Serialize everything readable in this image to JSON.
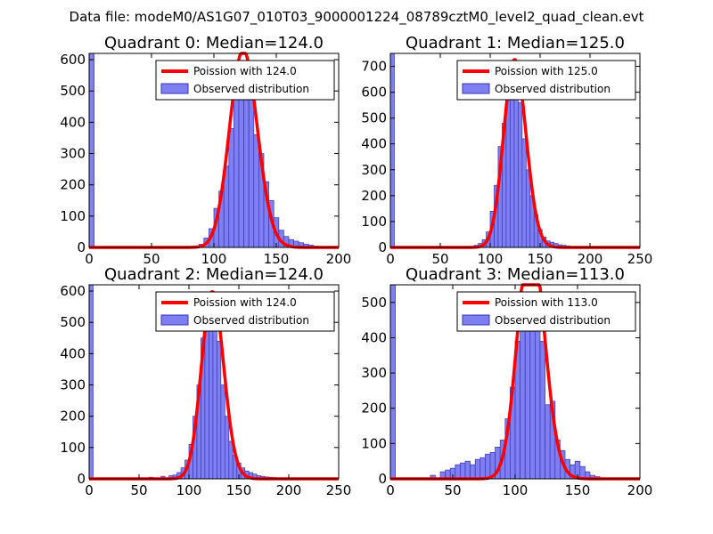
{
  "figure": {
    "suptitle": "Data file: modeM0/AS1G07_010T03_9000001224_08789cztM0_level2_quad_clean.evt"
  },
  "colors": {
    "hist_fill": "#7f7ff2",
    "hist_edge": "#3636b8",
    "poisson_line": "#ff0000",
    "axes": "#000000"
  },
  "chart_data": [
    {
      "type": "bar",
      "title": "Quadrant 0: Median=124.0",
      "median": 124.0,
      "xlim": [
        0,
        200
      ],
      "ylim": [
        0,
        620
      ],
      "xticks": [
        0,
        50,
        100,
        150,
        200
      ],
      "yticks": [
        0,
        100,
        200,
        300,
        400,
        500,
        600
      ],
      "bin_width": 4,
      "legend": {
        "position": "top-right",
        "line_label": "Poission with 124.0",
        "bar_label": "Observed distribution"
      },
      "histogram": {
        "bin_starts": [
          0,
          72,
          80,
          84,
          88,
          92,
          96,
          100,
          104,
          108,
          112,
          116,
          120,
          124,
          128,
          132,
          136,
          140,
          144,
          148,
          152,
          156,
          160,
          164,
          168,
          172,
          176,
          180,
          184,
          188
        ],
        "counts": [
          620,
          3,
          2,
          5,
          10,
          30,
          60,
          125,
          180,
          260,
          380,
          500,
          560,
          580,
          510,
          360,
          300,
          210,
          150,
          95,
          55,
          35,
          25,
          20,
          15,
          10,
          7,
          4,
          3,
          2
        ]
      }
    },
    {
      "type": "bar",
      "title": "Quadrant 1: Median=125.0",
      "median": 125.0,
      "xlim": [
        0,
        250
      ],
      "ylim": [
        0,
        750
      ],
      "xticks": [
        0,
        50,
        100,
        150,
        200,
        250
      ],
      "yticks": [
        0,
        100,
        200,
        300,
        400,
        500,
        600,
        700
      ],
      "bin_width": 4,
      "legend": {
        "position": "top-right",
        "line_label": "Poission with 125.0",
        "bar_label": "Observed distribution"
      },
      "histogram": {
        "bin_starts": [
          0,
          64,
          72,
          80,
          84,
          88,
          92,
          96,
          100,
          104,
          108,
          112,
          116,
          120,
          124,
          128,
          132,
          136,
          140,
          144,
          148,
          152,
          156,
          160,
          164,
          168,
          172,
          176,
          180,
          184,
          188,
          196
        ],
        "counts": [
          750,
          2,
          3,
          4,
          8,
          15,
          30,
          60,
          140,
          240,
          390,
          480,
          600,
          720,
          690,
          560,
          420,
          300,
          200,
          125,
          70,
          40,
          25,
          20,
          15,
          10,
          8,
          6,
          4,
          3,
          2,
          2
        ]
      }
    },
    {
      "type": "bar",
      "title": "Quadrant 2: Median=124.0",
      "median": 124.0,
      "xlim": [
        0,
        250
      ],
      "ylim": [
        0,
        620
      ],
      "xticks": [
        0,
        50,
        100,
        150,
        200,
        250
      ],
      "yticks": [
        0,
        100,
        200,
        300,
        400,
        500,
        600
      ],
      "bin_width": 4,
      "legend": {
        "position": "top-right",
        "line_label": "Poission with 124.0",
        "bar_label": "Observed distribution"
      },
      "histogram": {
        "bin_starts": [
          0,
          60,
          72,
          80,
          84,
          88,
          92,
          96,
          100,
          104,
          108,
          112,
          116,
          120,
          124,
          128,
          132,
          136,
          140,
          144,
          148,
          152,
          156,
          160,
          164,
          168,
          172,
          176,
          180,
          184,
          188,
          192
        ],
        "counts": [
          620,
          5,
          8,
          10,
          12,
          20,
          35,
          60,
          110,
          200,
          300,
          450,
          560,
          590,
          580,
          440,
          300,
          200,
          120,
          75,
          50,
          35,
          25,
          20,
          15,
          10,
          8,
          6,
          5,
          4,
          3,
          2
        ]
      }
    },
    {
      "type": "bar",
      "title": "Quadrant 3: Median=113.0",
      "median": 113.0,
      "xlim": [
        0,
        200
      ],
      "ylim": [
        0,
        550
      ],
      "xticks": [
        0,
        50,
        100,
        150,
        200
      ],
      "yticks": [
        0,
        100,
        200,
        300,
        400,
        500
      ],
      "bin_width": 4,
      "legend": {
        "position": "top-right",
        "line_label": "Poission with 113.0",
        "bar_label": "Observed distribution"
      },
      "histogram": {
        "bin_starts": [
          0,
          32,
          40,
          44,
          48,
          52,
          56,
          60,
          64,
          68,
          72,
          76,
          80,
          84,
          88,
          92,
          96,
          100,
          104,
          108,
          112,
          116,
          120,
          124,
          128,
          132,
          136,
          140,
          144,
          148,
          152,
          156,
          160,
          164,
          168
        ],
        "counts": [
          560,
          10,
          20,
          25,
          30,
          40,
          45,
          50,
          40,
          55,
          60,
          70,
          75,
          90,
          110,
          170,
          260,
          390,
          440,
          510,
          520,
          470,
          390,
          210,
          220,
          110,
          80,
          55,
          40,
          50,
          35,
          20,
          10,
          6,
          3
        ]
      }
    }
  ]
}
